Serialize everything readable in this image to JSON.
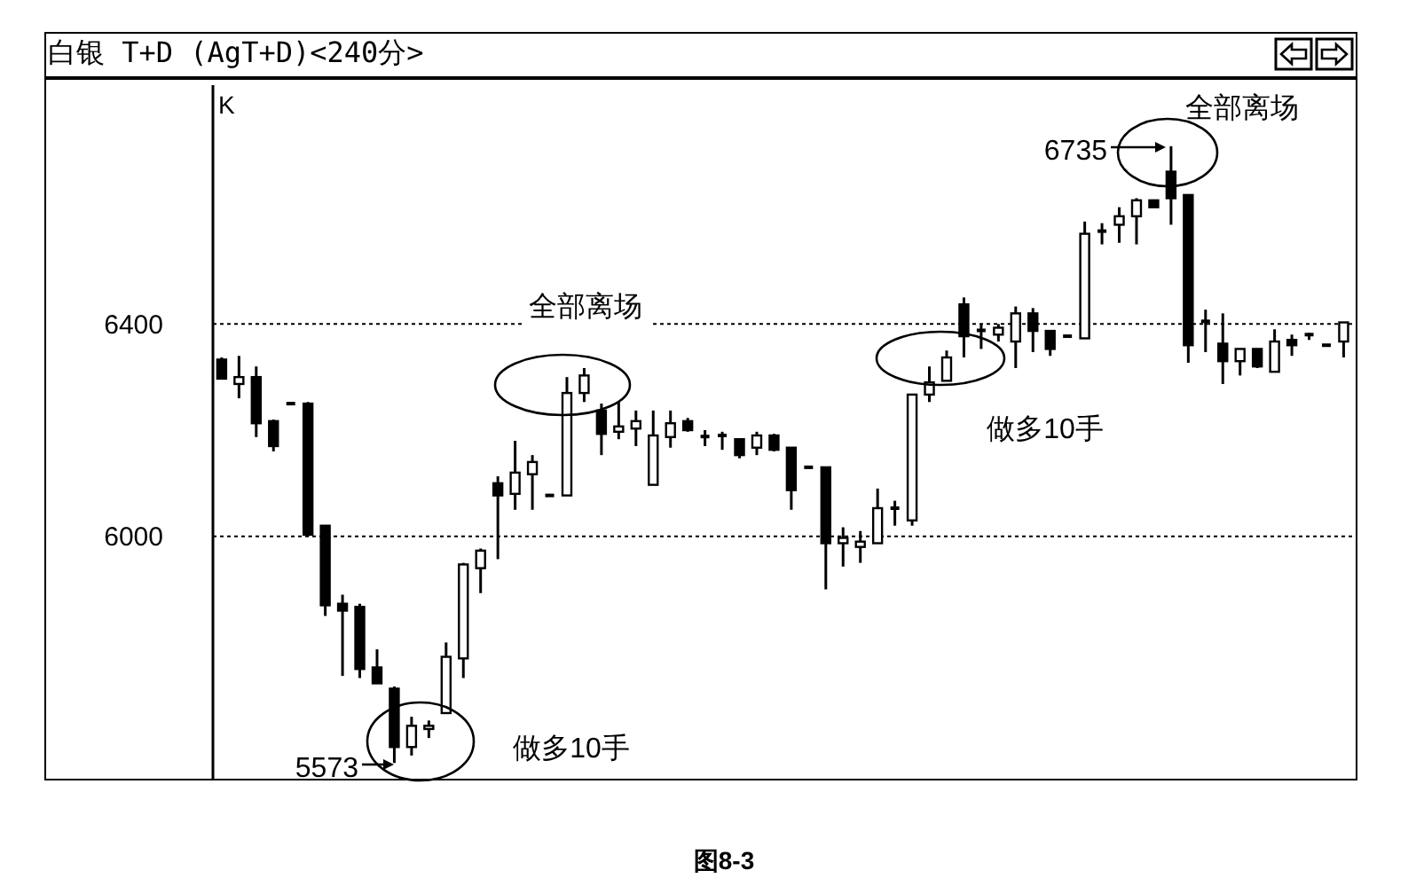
{
  "chart_data": {
    "type": "candlestick",
    "title": "白银 T+D (AgT+D)<240分>",
    "categories": [
      null,
      null,
      null,
      null,
      null,
      null,
      null,
      null,
      null,
      null,
      null,
      null,
      null,
      null,
      null,
      null,
      null,
      null,
      null,
      null,
      null,
      null,
      null,
      null,
      null,
      null,
      null,
      null,
      null,
      null,
      null,
      null,
      null,
      null,
      null,
      null,
      null,
      null,
      null,
      null,
      null,
      null,
      null,
      null,
      null,
      null,
      null,
      null,
      null,
      null,
      null,
      null,
      null,
      null,
      null,
      null,
      null,
      null,
      null,
      null,
      null,
      null,
      null,
      null,
      null,
      null
    ],
    "ohlc": [
      [
        6333,
        6337,
        6297,
        6297
      ],
      [
        6287,
        6340,
        6260,
        6300
      ],
      [
        6300,
        6320,
        6187,
        6213
      ],
      [
        6217,
        6220,
        6160,
        6170
      ],
      [
        6250,
        6250,
        6250,
        6250
      ],
      [
        6250,
        6253,
        6000,
        6003
      ],
      [
        6020,
        6020,
        5850,
        5870
      ],
      [
        5873,
        5890,
        5737,
        5860
      ],
      [
        5867,
        5873,
        5733,
        5750
      ],
      [
        5753,
        5787,
        5723,
        5723
      ],
      [
        5713,
        5717,
        5573,
        5603
      ],
      [
        5603,
        5660,
        5587,
        5643
      ],
      [
        5637,
        5653,
        5620,
        5643
      ],
      [
        5667,
        5800,
        5667,
        5773
      ],
      [
        5770,
        5950,
        5733,
        5947
      ],
      [
        5940,
        5977,
        5893,
        5973
      ],
      [
        6100,
        6113,
        5957,
        6077
      ],
      [
        6080,
        6180,
        6050,
        6120
      ],
      [
        6117,
        6153,
        6050,
        6140
      ],
      [
        6077,
        6077,
        6077,
        6077
      ],
      [
        6077,
        6300,
        6077,
        6270
      ],
      [
        6270,
        6317,
        6253,
        6303
      ],
      [
        6237,
        6250,
        6153,
        6193
      ],
      [
        6197,
        6253,
        6183,
        6207
      ],
      [
        6203,
        6237,
        6170,
        6217
      ],
      [
        6097,
        6237,
        6097,
        6190
      ],
      [
        6187,
        6237,
        6167,
        6213
      ],
      [
        6217,
        6223,
        6197,
        6200
      ],
      [
        6185,
        6200,
        6170,
        6188
      ],
      [
        6190,
        6197,
        6163,
        6185
      ],
      [
        6183,
        6183,
        6147,
        6153
      ],
      [
        6167,
        6197,
        6153,
        6190
      ],
      [
        6190,
        6193,
        6160,
        6163
      ],
      [
        6167,
        6167,
        6050,
        6087
      ],
      [
        6130,
        6130,
        6130,
        6130
      ],
      [
        6130,
        6130,
        5900,
        5987
      ],
      [
        5987,
        6017,
        5943,
        5997
      ],
      [
        5980,
        6010,
        5950,
        5990
      ],
      [
        5987,
        6090,
        5987,
        6053
      ],
      [
        6050,
        6067,
        6020,
        6053
      ],
      [
        6030,
        6267,
        6020,
        6267
      ],
      [
        6267,
        6320,
        6253,
        6290
      ],
      [
        6293,
        6350,
        6293,
        6337
      ],
      [
        6437,
        6450,
        6337,
        6377
      ],
      [
        6385,
        6400,
        6353,
        6388
      ],
      [
        6380,
        6400,
        6367,
        6393
      ],
      [
        6367,
        6433,
        6317,
        6420
      ],
      [
        6420,
        6430,
        6347,
        6387
      ],
      [
        6387,
        6387,
        6340,
        6353
      ],
      [
        6377,
        6377,
        6377,
        6377
      ],
      [
        6373,
        6593,
        6373,
        6570
      ],
      [
        6570,
        6590,
        6550,
        6575
      ],
      [
        6587,
        6620,
        6553,
        6603
      ],
      [
        6603,
        6637,
        6550,
        6633
      ],
      [
        6633,
        6633,
        6620,
        6620
      ],
      [
        6687,
        6735,
        6587,
        6637
      ],
      [
        6643,
        6643,
        6327,
        6360
      ],
      [
        6400,
        6427,
        6347,
        6405
      ],
      [
        6363,
        6420,
        6287,
        6330
      ],
      [
        6330,
        6353,
        6303,
        6353
      ],
      [
        6353,
        6353,
        6317,
        6320
      ],
      [
        6310,
        6390,
        6310,
        6367
      ],
      [
        6370,
        6380,
        6340,
        6360
      ],
      [
        6377,
        6383,
        6370,
        6380
      ],
      [
        6360,
        6360,
        6360,
        6360
      ],
      [
        6367,
        6403,
        6337,
        6403
      ]
    ],
    "color": "#000000",
    "ylim": [
      5540,
      6850
    ],
    "yticks": [
      6000,
      6400
    ],
    "grid": "y",
    "tick_labels": "y",
    "annotations": [
      "K",
      "全部离场",
      "6735",
      "全部离场",
      "做多10手",
      "做多10手",
      "5573",
      "图8-3"
    ]
  }
}
